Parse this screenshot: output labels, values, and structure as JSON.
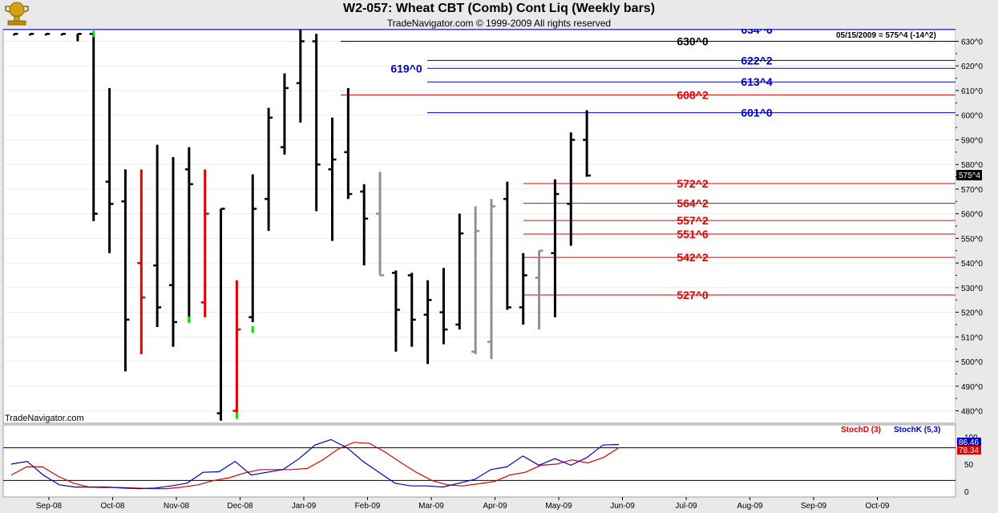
{
  "header": {
    "title": "W2-057:  Wheat CBT (Comb) Cont Liq  (Weekly bars)",
    "copyright": "TradeNavigator.com © 1999-2009 All rights reserved",
    "watermark": "TradeNavigator.com",
    "last_readout": "05/15/2009 = 575^4 (-14^2)",
    "last_price_tag": "575^4"
  },
  "colors": {
    "background": "#ffffff",
    "frame": "#e9e9e9",
    "up_bar": "#000000",
    "down_bar": "#e00000",
    "gray_bar": "#909090",
    "blue_line": "#0000c8",
    "red_line": "#e00000",
    "black_line": "#000000",
    "stoch_d": "#e00000",
    "stoch_k": "#0000c8"
  },
  "icons": {
    "logo": "trophy-logo-icon"
  },
  "chart_data": [
    {
      "type": "ohlc",
      "title": "W2-057:  Wheat CBT (Comb) Cont Liq  (Weekly bars)",
      "y_ticks": [
        "630^0",
        "620^0",
        "610^0",
        "600^0",
        "590^0",
        "580^0",
        "570^0",
        "560^0",
        "550^0",
        "540^0",
        "530^0",
        "520^0",
        "510^0",
        "500^0",
        "490^0",
        "480^0"
      ],
      "y_range": [
        474,
        633
      ],
      "x_labels": [
        "Sep-08",
        "Oct-08",
        "Nov-08",
        "Dec-08",
        "Jan-09",
        "Feb-09",
        "Mar-09",
        "Apr-09",
        "May-09",
        "Jun-09",
        "Jul-09",
        "Aug-09",
        "Sep-09",
        "Oct-09"
      ],
      "grid": true,
      "bars": [
        {
          "i": 0,
          "o": null,
          "h": 633,
          "l": 633,
          "c": 633,
          "color": "black"
        },
        {
          "i": 1,
          "o": null,
          "h": 633,
          "l": 633,
          "c": 633,
          "color": "black"
        },
        {
          "i": 2,
          "o": null,
          "h": 633,
          "l": 633,
          "c": 633,
          "color": "black"
        },
        {
          "i": 3,
          "o": null,
          "h": 633,
          "l": 633,
          "c": 633,
          "color": "black"
        },
        {
          "i": 4,
          "o": null,
          "h": 633,
          "l": 630,
          "c": 633,
          "color": "black"
        },
        {
          "i": 5,
          "o": 633,
          "h": 633,
          "l": 557,
          "c": 560,
          "color": "black"
        },
        {
          "i": 6,
          "o": 573,
          "h": 611,
          "l": 544,
          "c": 564,
          "color": "black"
        },
        {
          "i": 7,
          "o": 565,
          "h": 578,
          "l": 496,
          "c": 517,
          "color": "black"
        },
        {
          "i": 8,
          "o": 540,
          "h": 578,
          "l": 503,
          "c": 526,
          "color": "red"
        },
        {
          "i": 9,
          "o": 539,
          "h": 588,
          "l": 514,
          "c": 522,
          "color": "black"
        },
        {
          "i": 10,
          "o": 531,
          "h": 583,
          "l": 506,
          "c": 516,
          "color": "black"
        },
        {
          "i": 11,
          "o": 578,
          "h": 587,
          "l": 516,
          "c": 572,
          "color": "black"
        },
        {
          "i": 12,
          "o": 524,
          "h": 578,
          "l": 518,
          "c": 560,
          "color": "red"
        },
        {
          "i": 13,
          "o": 479,
          "h": 562,
          "l": 476,
          "c": 562,
          "color": "black"
        },
        {
          "i": 14,
          "o": 480,
          "h": 533,
          "l": 478,
          "c": 513,
          "color": "red"
        },
        {
          "i": 15,
          "o": 518,
          "h": 576,
          "l": 516,
          "c": 562,
          "color": "black"
        },
        {
          "i": 16,
          "o": 566,
          "h": 603,
          "l": 553,
          "c": 599,
          "color": "black"
        },
        {
          "i": 17,
          "o": 587,
          "h": 617,
          "l": 584,
          "c": 611,
          "color": "black"
        },
        {
          "i": 18,
          "o": 613,
          "h": 635,
          "l": 597,
          "c": 630,
          "color": "black"
        },
        {
          "i": 19,
          "o": 630,
          "h": 633,
          "l": 561,
          "c": 580,
          "color": "black"
        },
        {
          "i": 20,
          "o": 578,
          "h": 599,
          "l": 549,
          "c": 582,
          "color": "black"
        },
        {
          "i": 21,
          "o": 585,
          "h": 611,
          "l": 566,
          "c": 568,
          "color": "black"
        },
        {
          "i": 22,
          "o": 569,
          "h": 572,
          "l": 539,
          "c": 558,
          "color": "black"
        },
        {
          "i": 23,
          "o": 560,
          "h": 577,
          "l": 535,
          "c": 535,
          "color": "gray"
        },
        {
          "i": 24,
          "o": 536,
          "h": 537,
          "l": 504,
          "c": 521,
          "color": "black"
        },
        {
          "i": 25,
          "o": 535,
          "h": 536,
          "l": 506,
          "c": 517,
          "color": "black"
        },
        {
          "i": 26,
          "o": 519,
          "h": 533,
          "l": 499,
          "c": 525,
          "color": "black"
        },
        {
          "i": 27,
          "o": 520,
          "h": 538,
          "l": 507,
          "c": 513,
          "color": "black"
        },
        {
          "i": 28,
          "o": 515,
          "h": 560,
          "l": 513,
          "c": 552,
          "color": "black"
        },
        {
          "i": 29,
          "o": 504,
          "h": 563,
          "l": 503,
          "c": 553,
          "color": "gray"
        },
        {
          "i": 30,
          "o": 508,
          "h": 566,
          "l": 501,
          "c": 563,
          "color": "gray"
        },
        {
          "i": 31,
          "o": 566,
          "h": 573,
          "l": 521,
          "c": 522,
          "color": "black"
        },
        {
          "i": 32,
          "o": 522,
          "h": 544,
          "l": 515,
          "c": 535,
          "color": "black"
        },
        {
          "i": 33,
          "o": 534,
          "h": 545,
          "l": 513,
          "c": 545,
          "color": "gray"
        },
        {
          "i": 34,
          "o": 544,
          "h": 574,
          "l": 518,
          "c": 568,
          "color": "black"
        },
        {
          "i": 35,
          "o": 564,
          "h": 593,
          "l": 547,
          "c": 590,
          "color": "black"
        },
        {
          "i": 36,
          "o": 590,
          "h": 602,
          "l": 575,
          "c": 575.5,
          "color": "black"
        }
      ],
      "lines": [
        {
          "label": "634^6",
          "value": 634.75,
          "color": "blue",
          "label_x": "right",
          "start": "left"
        },
        {
          "label": "630^0",
          "value": 630,
          "color": "black",
          "label_x": "mid",
          "start": "jan"
        },
        {
          "label": "622^2",
          "value": 622.25,
          "color": "blue",
          "label_x": "right",
          "start": "feb"
        },
        {
          "label": "619^0",
          "value": 619,
          "color": "blue",
          "label_x": "feb",
          "start": "feb"
        },
        {
          "label": "613^4",
          "value": 613.5,
          "color": "blue",
          "label_x": "right",
          "start": "feb"
        },
        {
          "label": "608^2",
          "value": 608.25,
          "color": "red",
          "label_x": "mid",
          "start": "jan"
        },
        {
          "label": "601^0",
          "value": 601,
          "color": "blue",
          "label_x": "right",
          "start": "feb"
        },
        {
          "label": "572^2",
          "value": 572.25,
          "color": "red",
          "label_x": "mid",
          "start": "apr"
        },
        {
          "label": "564^2",
          "value": 564.25,
          "color": "red",
          "label_x": "mid",
          "start": "apr"
        },
        {
          "label": "557^2",
          "value": 557.25,
          "color": "red",
          "label_x": "mid",
          "start": "apr"
        },
        {
          "label": "551^6",
          "value": 551.75,
          "color": "red",
          "label_x": "mid",
          "start": "apr"
        },
        {
          "label": "542^2",
          "value": 542.25,
          "color": "red",
          "label_x": "mid",
          "start": "apr"
        },
        {
          "label": "527^0",
          "value": 527,
          "color": "red",
          "label_x": "mid",
          "start": "apr"
        }
      ]
    },
    {
      "type": "line",
      "title": "",
      "legend": [
        "StochD (3)",
        "StochK (5,3)"
      ],
      "y_ticks": [
        "100",
        "50",
        "0"
      ],
      "y_range": [
        -8,
        110
      ],
      "reference_lines": [
        80,
        20
      ],
      "value_tags": [
        "86.46",
        "78.34"
      ],
      "series": [
        {
          "name": "StochD (3)",
          "color": "red",
          "values": [
            30,
            45,
            45,
            28,
            15,
            8,
            7,
            7,
            6,
            5,
            5,
            8,
            12,
            20,
            25,
            34,
            40,
            40,
            40,
            42,
            58,
            78,
            90,
            88,
            72,
            53,
            35,
            20,
            12,
            10,
            14,
            18,
            30,
            35,
            48,
            50,
            58,
            52,
            62,
            80
          ]
        },
        {
          "name": "StochK (5,3)",
          "color": "blue",
          "values": [
            50,
            55,
            30,
            12,
            8,
            8,
            8,
            6,
            5,
            6,
            10,
            15,
            35,
            36,
            55,
            30,
            35,
            40,
            60,
            85,
            95,
            80,
            55,
            35,
            15,
            10,
            10,
            8,
            15,
            22,
            40,
            45,
            65,
            48,
            60,
            48,
            62,
            85,
            86
          ]
        }
      ]
    }
  ]
}
